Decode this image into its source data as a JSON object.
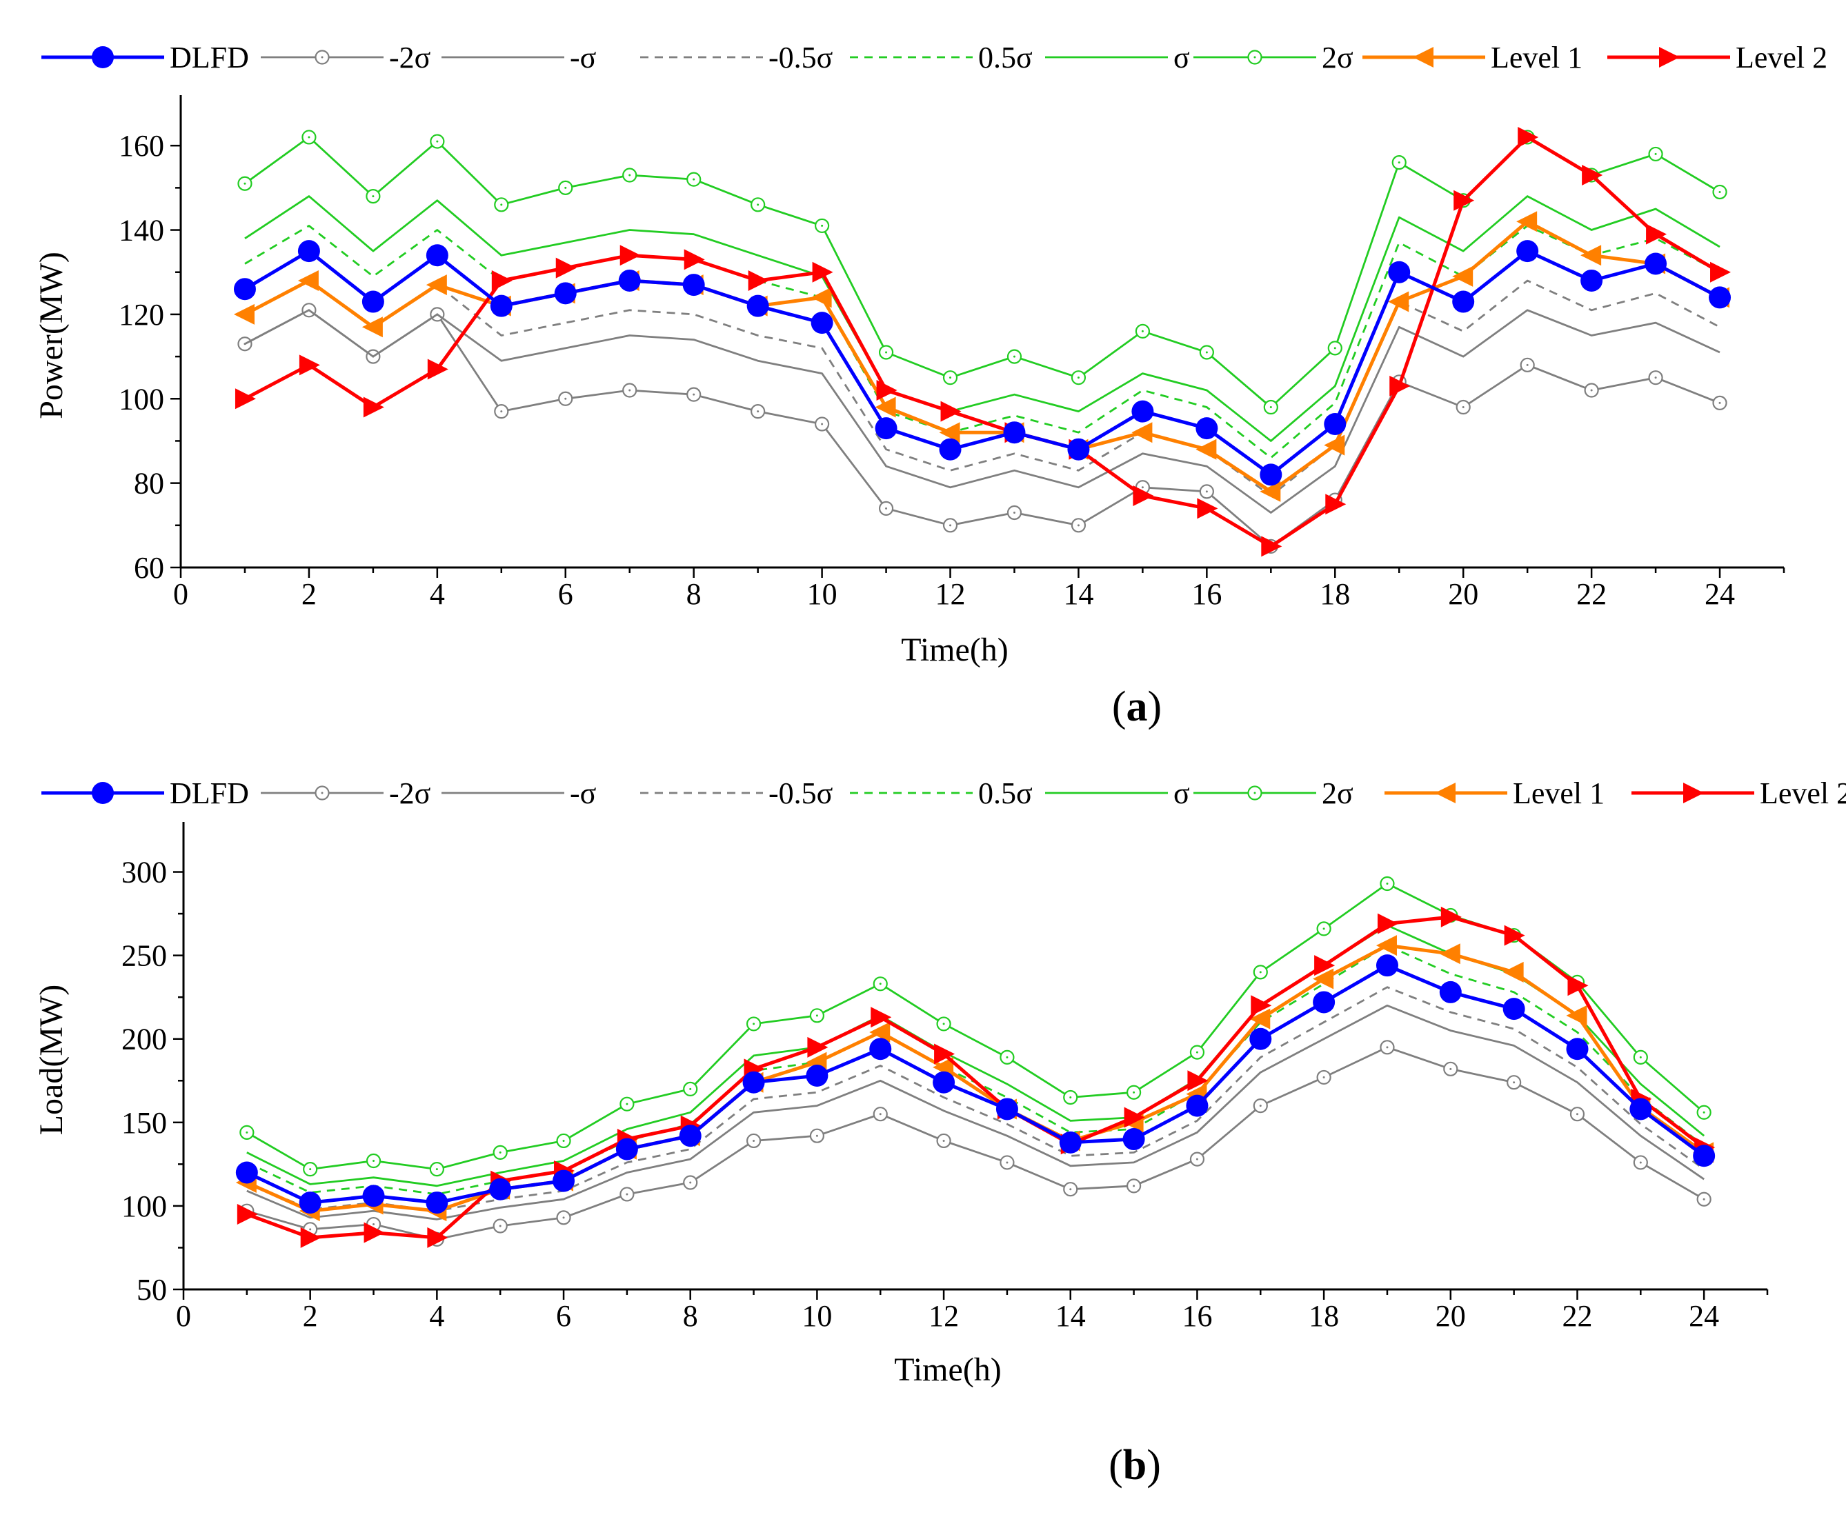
{
  "chart_data": [
    {
      "type": "line",
      "panel_label": "a",
      "xlabel": "Time(h)",
      "ylabel": "Power(MW)",
      "xlim": [
        0,
        25
      ],
      "ylim": [
        60,
        170
      ],
      "xticks": [
        0,
        2,
        4,
        6,
        8,
        10,
        12,
        14,
        16,
        18,
        20,
        22,
        24
      ],
      "yticks": [
        60,
        80,
        100,
        120,
        140,
        160
      ],
      "x": [
        1,
        2,
        3,
        4,
        5,
        6,
        7,
        8,
        9,
        10,
        11,
        12,
        13,
        14,
        15,
        16,
        17,
        18,
        19,
        20,
        21,
        22,
        23,
        24
      ],
      "series": [
        {
          "key": "minus2sigma",
          "name": "-2σ",
          "values": [
            113,
            121,
            110,
            120,
            97,
            100,
            102,
            101,
            97,
            94,
            74,
            70,
            73,
            70,
            79,
            78,
            65,
            76,
            104,
            98,
            108,
            102,
            105,
            99
          ]
        },
        {
          "key": "minus1sigma",
          "name": "-σ",
          "values": [
            113,
            121,
            110,
            120,
            109,
            112,
            115,
            114,
            109,
            106,
            84,
            79,
            83,
            79,
            87,
            84,
            73,
            84,
            117,
            110,
            121,
            115,
            118,
            111
          ]
        },
        {
          "key": "minus05sigma",
          "name": "-0.5σ",
          "values": [
            120,
            128,
            117,
            127,
            115,
            118,
            121,
            120,
            115,
            112,
            88,
            83,
            87,
            83,
            92,
            88,
            77,
            89,
            123,
            116,
            128,
            121,
            125,
            117
          ]
        },
        {
          "key": "plus05sigma",
          "name": "0.5σ",
          "values": [
            132,
            141,
            129,
            140,
            128,
            131,
            134,
            133,
            128,
            124,
            97,
            92,
            96,
            92,
            102,
            98,
            86,
            99,
            137,
            129,
            141,
            134,
            138,
            130
          ]
        },
        {
          "key": "plus1sigma",
          "name": "σ",
          "values": [
            138,
            148,
            135,
            147,
            134,
            137,
            140,
            139,
            134,
            129,
            102,
            97,
            101,
            97,
            106,
            102,
            90,
            103,
            143,
            135,
            148,
            140,
            145,
            136
          ]
        },
        {
          "key": "plus2sigma",
          "name": "2σ",
          "values": [
            151,
            162,
            148,
            161,
            146,
            150,
            153,
            152,
            146,
            141,
            111,
            105,
            110,
            105,
            116,
            111,
            98,
            112,
            156,
            147,
            162,
            153,
            158,
            149
          ]
        },
        {
          "key": "level1",
          "name": "Level 1",
          "values": [
            120,
            128,
            117,
            127,
            122,
            125,
            128,
            127,
            122,
            124,
            98,
            92,
            92,
            88,
            92,
            88,
            78,
            89,
            123,
            129,
            142,
            134,
            132,
            124
          ]
        },
        {
          "key": "level2",
          "name": "Level 2",
          "values": [
            100,
            108,
            98,
            107,
            128,
            131,
            134,
            133,
            128,
            130,
            102,
            97,
            92,
            88,
            77,
            74,
            65,
            75,
            103,
            147,
            162,
            153,
            139,
            130
          ]
        },
        {
          "key": "dlfd",
          "name": "DLFD",
          "values": [
            126,
            135,
            123,
            134,
            122,
            125,
            128,
            127,
            122,
            118,
            93,
            88,
            92,
            88,
            97,
            93,
            82,
            94,
            130,
            123,
            135,
            128,
            132,
            124
          ]
        }
      ]
    },
    {
      "type": "line",
      "panel_label": "b",
      "xlabel": "Time(h)",
      "ylabel": "Load(MW)",
      "xlim": [
        0,
        25
      ],
      "ylim": [
        50,
        325
      ],
      "xticks": [
        0,
        2,
        4,
        6,
        8,
        10,
        12,
        14,
        16,
        18,
        20,
        22,
        24
      ],
      "yticks": [
        50,
        100,
        150,
        200,
        250,
        300
      ],
      "x": [
        1,
        2,
        3,
        4,
        5,
        6,
        7,
        8,
        9,
        10,
        11,
        12,
        13,
        14,
        15,
        16,
        17,
        18,
        19,
        20,
        21,
        22,
        23,
        24
      ],
      "series": [
        {
          "key": "minus2sigma",
          "name": "-2σ",
          "values": [
            97,
            86,
            89,
            80,
            88,
            93,
            107,
            114,
            139,
            142,
            155,
            139,
            126,
            110,
            112,
            128,
            160,
            177,
            195,
            182,
            174,
            155,
            126,
            104
          ]
        },
        {
          "key": "minus1sigma",
          "name": "-σ",
          "values": [
            109,
            93,
            97,
            92,
            99,
            104,
            120,
            128,
            156,
            160,
            175,
            157,
            142,
            124,
            126,
            144,
            180,
            200,
            220,
            205,
            196,
            174,
            142,
            116
          ]
        },
        {
          "key": "minus05sigma",
          "name": "-0.5σ",
          "values": [
            114,
            98,
            102,
            97,
            104,
            109,
            126,
            134,
            164,
            168,
            184,
            165,
            149,
            130,
            132,
            151,
            189,
            210,
            231,
            216,
            206,
            183,
            149,
            122
          ]
        },
        {
          "key": "plus05sigma",
          "name": "0.5σ",
          "values": [
            126,
            108,
            112,
            107,
            115,
            121,
            139,
            149,
            181,
            186,
            204,
            183,
            165,
            144,
            146,
            168,
            210,
            233,
            256,
            239,
            228,
            204,
            165,
            136
          ]
        },
        {
          "key": "plus1sigma",
          "name": "σ",
          "values": [
            132,
            113,
            117,
            112,
            120,
            127,
            146,
            156,
            190,
            195,
            214,
            192,
            173,
            151,
            153,
            176,
            220,
            244,
            268,
            251,
            239,
            214,
            173,
            142
          ]
        },
        {
          "key": "plus2sigma",
          "name": "2σ",
          "values": [
            144,
            122,
            127,
            122,
            132,
            139,
            161,
            170,
            209,
            214,
            233,
            209,
            189,
            165,
            168,
            192,
            240,
            266,
            293,
            274,
            262,
            234,
            189,
            156
          ]
        },
        {
          "key": "level1",
          "name": "Level 1",
          "values": [
            114,
            97,
            101,
            97,
            110,
            115,
            134,
            142,
            174,
            186,
            204,
            183,
            158,
            139,
            150,
            167,
            212,
            236,
            256,
            251,
            240,
            214,
            159,
            132
          ]
        },
        {
          "key": "level2",
          "name": "Level 2",
          "values": [
            95,
            81,
            84,
            81,
            115,
            121,
            140,
            148,
            182,
            195,
            213,
            191,
            158,
            137,
            153,
            175,
            220,
            244,
            269,
            273,
            262,
            232,
            164,
            135
          ]
        },
        {
          "key": "dlfd",
          "name": "DLFD",
          "values": [
            120,
            102,
            106,
            102,
            110,
            115,
            134,
            142,
            174,
            178,
            194,
            174,
            158,
            138,
            140,
            160,
            200,
            222,
            244,
            228,
            218,
            194,
            158,
            130
          ]
        }
      ]
    }
  ],
  "legend_order": [
    "dlfd",
    "minus2sigma",
    "minus1sigma",
    "minus05sigma",
    "plus05sigma",
    "plus1sigma",
    "plus2sigma",
    "level1",
    "level2"
  ],
  "styles": {
    "dlfd": {
      "color": "#0000ff",
      "marker": "filled-circle",
      "dashed": false
    },
    "minus2sigma": {
      "color": "#7f7f7f",
      "marker": "open-circle",
      "dashed": false
    },
    "minus1sigma": {
      "color": "#7f7f7f",
      "marker": "none",
      "dashed": false
    },
    "minus05sigma": {
      "color": "#7f7f7f",
      "marker": "none",
      "dashed": true
    },
    "plus05sigma": {
      "color": "#22cc22",
      "marker": "none",
      "dashed": true
    },
    "plus1sigma": {
      "color": "#22cc22",
      "marker": "none",
      "dashed": false
    },
    "plus2sigma": {
      "color": "#22cc22",
      "marker": "open-circle",
      "dashed": false
    },
    "level1": {
      "color": "#ff8000",
      "marker": "left-triangle",
      "dashed": false
    },
    "level2": {
      "color": "#ff0000",
      "marker": "right-triangle",
      "dashed": false
    }
  }
}
